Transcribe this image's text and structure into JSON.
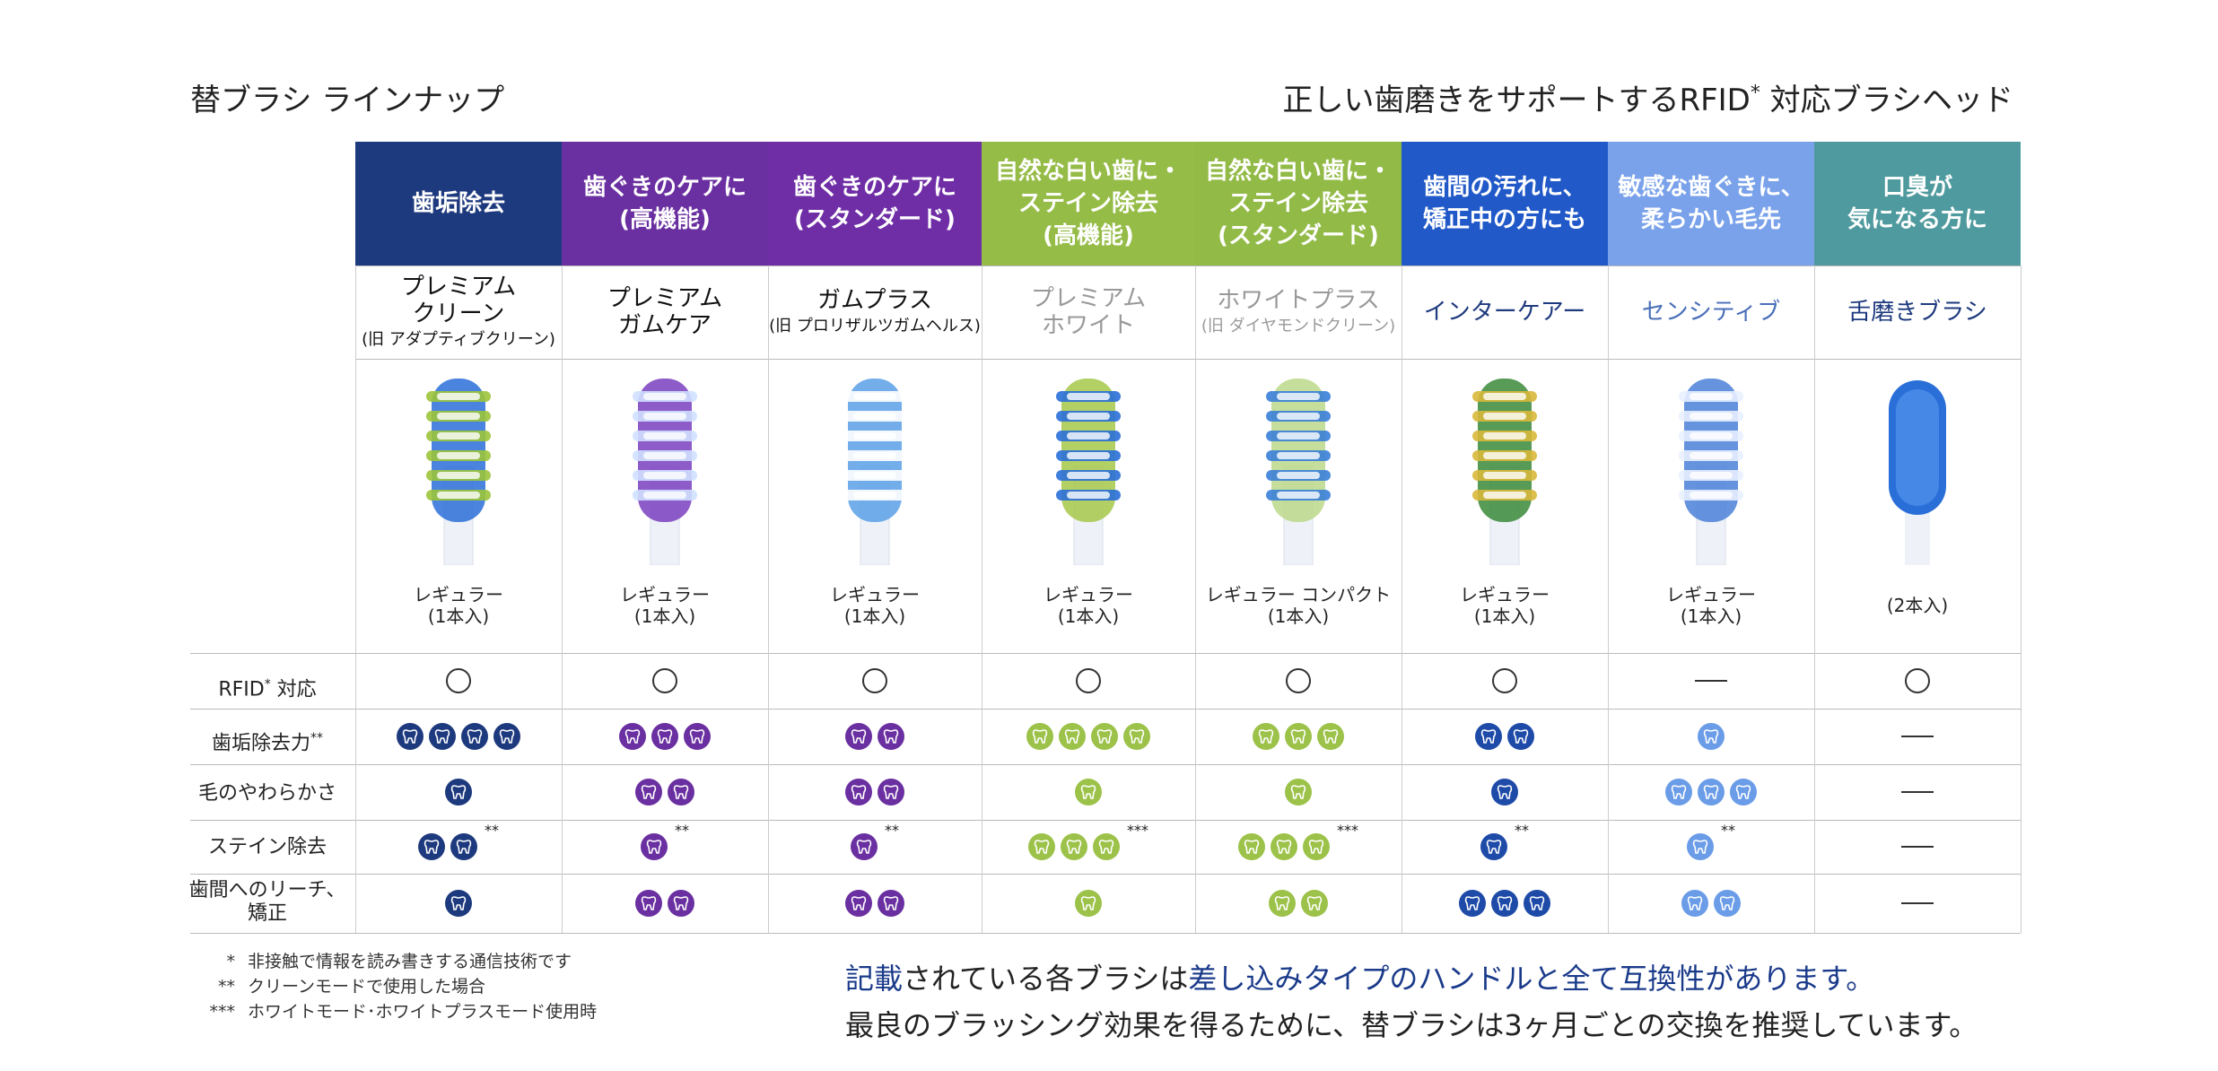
{
  "header": {
    "left_title": "替ブラシ ラインナップ",
    "right_title_main": "正しい歯磨きをサポートするRFID",
    "right_title_star": "*",
    "right_title_tail": " 対応ブラシヘッド"
  },
  "row_labels": {
    "rfid_main": "RFID",
    "rfid_star": "*",
    "rfid_tail": " 対応",
    "plaque_main": "歯垢除去力",
    "plaque_star": "**",
    "softness": "毛のやわらかさ",
    "stain": "ステイン除去",
    "interdental_1": "歯間へのリーチ、",
    "interdental_2": "矯正"
  },
  "columns": [
    {
      "category": "歯垢除去",
      "cat_color": "#1e3a7e",
      "name": "プレミアム\nクリーン",
      "name_color": "#111111",
      "old": "(旧 アダプティブクリーン)",
      "old_color": "#111111",
      "count": "レギュラー\n(1本入)",
      "brush_color": "#2a6fd8",
      "brush_accent": "#9cc43a",
      "tooth_color": "#1e3a7e",
      "rfid": "circle",
      "plaque": 4,
      "softness": 1,
      "stain": 2,
      "stain_mark": "**",
      "interdental": 1
    },
    {
      "category": "歯ぐきのケアに\n(高機能)",
      "cat_color": "#6a2fa0",
      "name": "プレミアム\nガムケア",
      "name_color": "#111111",
      "old": "",
      "old_color": "#111111",
      "count": "レギュラー\n(1本入)",
      "brush_color": "#7a3fc0",
      "brush_accent": "#cfe0ff",
      "tooth_color": "#6a2fa0",
      "rfid": "circle",
      "plaque": 3,
      "softness": 2,
      "stain": 1,
      "stain_mark": "**",
      "interdental": 2
    },
    {
      "category": "歯ぐきのケアに\n(スタンダード)",
      "cat_color": "#6f2ea6",
      "name": "ガムプラス",
      "name_color": "#111111",
      "old": "(旧 プロリザルツガムヘルス)",
      "old_color": "#111111",
      "count": "レギュラー\n(1本入)",
      "brush_color": "#5aa0e8",
      "brush_accent": "#ffffff",
      "tooth_color": "#6a2fa0",
      "rfid": "circle",
      "plaque": 2,
      "softness": 2,
      "stain": 1,
      "stain_mark": "**",
      "interdental": 2
    },
    {
      "category": "自然な白い歯に・\nステイン除去\n(高機能)",
      "cat_color": "#96bc48",
      "name": "プレミアム\nホワイト",
      "name_color": "#999999",
      "old": "",
      "old_color": "#999999",
      "count": "レギュラー\n(1本入)",
      "brush_color": "#a6c84a",
      "brush_accent": "#2a6fd8",
      "tooth_color": "#9cc24a",
      "rfid": "circle",
      "plaque": 4,
      "softness": 1,
      "stain": 3,
      "stain_mark": "***",
      "interdental": 1
    },
    {
      "category": "自然な白い歯に・\nステイン除去\n(スタンダード)",
      "cat_color": "#92ba46",
      "name": "ホワイトプラス",
      "name_color": "#999999",
      "old": "(旧 ダイヤモンドクリーン)",
      "old_color": "#999999",
      "count": "レギュラー  コンパクト\n(1本入)",
      "brush_color": "#bcd88a",
      "brush_accent": "#3a7fd8",
      "tooth_color": "#9cc24a",
      "rfid": "circle",
      "plaque": 3,
      "softness": 1,
      "stain": 3,
      "stain_mark": "***",
      "interdental": 2
    },
    {
      "category": "歯間の汚れに、\n矯正中の方にも",
      "cat_color": "#2159c8",
      "name": "インターケアー",
      "name_color": "#1e3a7e",
      "old": "",
      "old_color": "#111111",
      "count": "レギュラー\n(1本入)",
      "brush_color": "#3a8a3a",
      "brush_accent": "#d8b83a",
      "tooth_color": "#1e4aa8",
      "rfid": "circle",
      "plaque": 2,
      "softness": 1,
      "stain": 1,
      "stain_mark": "**",
      "interdental": 3
    },
    {
      "category": "敏感な歯ぐきに、\n柔らかい毛先",
      "cat_color": "#7aa2ea",
      "name": "センシティブ",
      "name_color": "#4a6fb8",
      "old": "",
      "old_color": "#111111",
      "count": "レギュラー\n(1本入)",
      "brush_color": "#4a80d8",
      "brush_accent": "#e8f0ff",
      "tooth_color": "#6a9ce8",
      "rfid": "dash",
      "plaque": 1,
      "softness": 3,
      "stain": 1,
      "stain_mark": "**",
      "interdental": 2
    },
    {
      "category": "口臭が\n気になる方に",
      "cat_color": "#4f9a9e",
      "name": "舌磨きブラシ",
      "name_color": "#1e3a7e",
      "old": "",
      "old_color": "#111111",
      "count": "(2本入)",
      "brush_color": "#2a6fd8",
      "brush_accent": "#5a9af0",
      "tooth_color": "#4f9a9e",
      "rfid": "circle",
      "plaque": 0,
      "softness": 0,
      "stain": 0,
      "stain_mark": "",
      "interdental": 0
    }
  ],
  "footnotes": [
    {
      "mark": "*",
      "text": "非接触で情報を読み書きする通信技術です"
    },
    {
      "mark": "**",
      "text": "クリーンモードで使用した場合"
    },
    {
      "mark": "***",
      "text": "ホワイトモード･ホワイトプラスモード使用時"
    }
  ],
  "bottom": {
    "line1_a": "記載",
    "line1_b": "されている各ブラシは",
    "line1_c": "差し込みタイプのハンドルと全て互換性があります。",
    "line2": "最良のブラッシング効果を得るために、替ブラシは3ヶ月ごとの交換を推奨しています。"
  }
}
